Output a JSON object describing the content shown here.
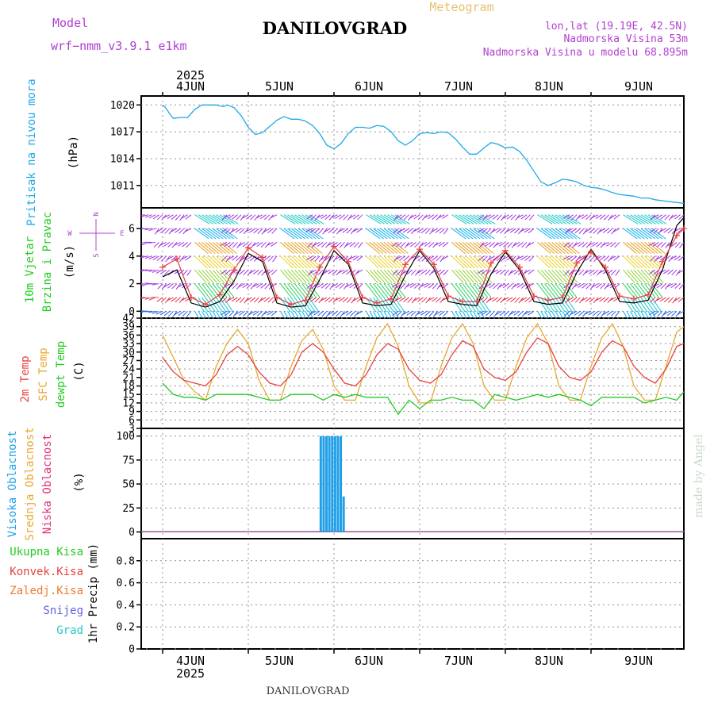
{
  "header": {
    "model_label": "Model",
    "model_name": "wrf−nmm_v3.9.1  e1km",
    "station": "DANILOVGRAD",
    "product": "Meteogram",
    "lonlat": "lon,lat (19.19E, 42.5N)",
    "elevation": "Nadmorska Visina 53m",
    "model_elevation": "Nadmorska Visina u modelu 68.895m",
    "footer_station": "DANILOVGRAD",
    "credit": "made by Angel"
  },
  "colors": {
    "pressure": "#1fa8e8",
    "t2m": "#e84040",
    "sfc": "#e8a830",
    "dewpt": "#22cc22",
    "high_cloud": "#1fa0e8",
    "mid_cloud": "#e8a830",
    "low_cloud": "#e0307a",
    "wind_speed": "#000000",
    "gust": "#e84040",
    "magenta_text": "#b040d0",
    "grid": "#909090"
  },
  "chart_data": [
    {
      "type": "line",
      "panel": "pressure",
      "ylabel_rotated": "Pritisak na nivou mora",
      "ylabel_unit": "(hPa)",
      "ylim": [
        1008.5,
        1021
      ],
      "yticks": [
        1011,
        1014,
        1017,
        1020
      ],
      "x_date_labels": [
        "4JUN",
        "5JUN",
        "6JUN",
        "7JUN",
        "8JUN",
        "9JUN"
      ],
      "x_year": "2025",
      "x": [
        0,
        1,
        2,
        3,
        5,
        7,
        9,
        11,
        13,
        15,
        17,
        18,
        20,
        22,
        24,
        26,
        28,
        30,
        32,
        34,
        36,
        38,
        40,
        42,
        44,
        46,
        48,
        50,
        52,
        54,
        56,
        58,
        60,
        62,
        64,
        66,
        68,
        70,
        72,
        74,
        76,
        78,
        80,
        82,
        84,
        86,
        88,
        90,
        92,
        94,
        96,
        98,
        100,
        102,
        104,
        106,
        108,
        110,
        112,
        114,
        116,
        118,
        120,
        122,
        124,
        126,
        128,
        130,
        132,
        134,
        136,
        138,
        140,
        142,
        144,
        146
      ],
      "series": [
        {
          "values": [
            1020.0,
            1019.6,
            1019.0,
            1018.5,
            1018.6,
            1018.6,
            1019.5,
            1020.0,
            1020.0,
            1020.0,
            1019.8,
            1020.0,
            1019.7,
            1018.8,
            1017.5,
            1016.7,
            1016.9,
            1017.6,
            1018.3,
            1018.7,
            1018.4,
            1018.4,
            1018.2,
            1017.7,
            1016.8,
            1015.5,
            1015.1,
            1015.7,
            1016.8,
            1017.5,
            1017.5,
            1017.4,
            1017.7,
            1017.6,
            1017.0,
            1016.0,
            1015.5,
            1016.0,
            1016.8,
            1016.9,
            1016.8,
            1017.0,
            1016.9,
            1016.2,
            1015.3,
            1014.5,
            1014.5,
            1015.2,
            1015.8,
            1015.6,
            1015.2,
            1015.3,
            1014.8,
            1013.8,
            1012.6,
            1011.4,
            1011.0,
            1011.3,
            1011.7,
            1011.6,
            1011.4,
            1011.0,
            1010.8,
            1010.7,
            1010.5,
            1010.2,
            1010.0,
            1009.9,
            1009.8,
            1009.6,
            1009.6,
            1009.4,
            1009.3,
            1009.2,
            1009.1,
            1009.0
          ]
        }
      ]
    },
    {
      "type": "line",
      "panel": "wind",
      "ylabel_rotated_1": "10m Vjetar",
      "ylabel_rotated_2": "Brzina i Pravac",
      "ylabel_unit": "(m/s)",
      "compass_n": "N",
      "compass_e": "E",
      "compass_w": "W",
      "compass_s": "S",
      "ylim": [
        -0.5,
        7.5
      ],
      "yticks": [
        0,
        2,
        4,
        6
      ],
      "x": [
        0,
        4,
        8,
        12,
        16,
        20,
        24,
        28,
        32,
        36,
        40,
        44,
        48,
        52,
        56,
        60,
        64,
        68,
        72,
        76,
        80,
        84,
        88,
        92,
        96,
        100,
        104,
        108,
        112,
        116,
        120,
        124,
        128,
        132,
        136,
        140,
        144,
        146
      ],
      "series": [
        {
          "name": "speed",
          "values": [
            2.5,
            3.0,
            0.6,
            0.3,
            0.7,
            2.2,
            4.2,
            3.6,
            0.6,
            0.3,
            0.4,
            2.3,
            4.4,
            3.4,
            0.6,
            0.4,
            0.5,
            2.6,
            4.4,
            3.1,
            0.7,
            0.5,
            0.4,
            2.7,
            4.3,
            3.0,
            0.7,
            0.5,
            0.6,
            2.8,
            4.5,
            3.0,
            0.7,
            0.6,
            0.8,
            3.0,
            6.2,
            6.8
          ]
        },
        {
          "name": "gust",
          "values": [
            3.2,
            3.8,
            1.0,
            0.5,
            1.2,
            3.0,
            4.6,
            3.9,
            1.0,
            0.5,
            0.8,
            3.2,
            4.7,
            3.6,
            1.0,
            0.6,
            0.9,
            3.4,
            4.5,
            3.4,
            1.1,
            0.7,
            0.7,
            3.5,
            4.4,
            3.2,
            1.1,
            0.8,
            1.0,
            3.5,
            4.3,
            3.2,
            1.1,
            0.9,
            1.2,
            3.6,
            5.5,
            6.0
          ]
        }
      ]
    },
    {
      "type": "line",
      "panel": "temperature",
      "ylabel_rotated_1": "2m Temp",
      "ylabel_rotated_2": "SFC Temp",
      "ylabel_rotated_3": "dewpt Temp",
      "ylabel_unit": "(C)",
      "ylim": [
        3,
        42
      ],
      "yticks": [
        3,
        6,
        9,
        12,
        15,
        18,
        21,
        24,
        27,
        30,
        33,
        36,
        39,
        42
      ],
      "x": [
        0,
        3,
        6,
        9,
        12,
        15,
        18,
        21,
        24,
        27,
        30,
        33,
        36,
        39,
        42,
        45,
        48,
        51,
        54,
        57,
        60,
        63,
        66,
        69,
        72,
        75,
        78,
        81,
        84,
        87,
        90,
        93,
        96,
        99,
        102,
        105,
        108,
        111,
        114,
        117,
        120,
        123,
        126,
        129,
        132,
        135,
        138,
        141,
        144,
        146
      ],
      "series": [
        {
          "name": "t2m",
          "values": [
            28,
            23,
            20,
            19,
            18,
            22,
            29,
            32,
            29,
            23,
            19,
            18,
            22,
            30,
            33,
            30,
            24,
            19,
            18,
            22,
            29,
            33,
            31,
            24,
            20,
            19,
            22,
            29,
            34,
            32,
            24,
            21,
            20,
            23,
            30,
            35,
            33,
            25,
            21,
            20,
            23,
            30,
            34,
            32,
            25,
            21,
            19,
            24,
            32,
            33
          ]
        },
        {
          "name": "sfc",
          "values": [
            36,
            28,
            20,
            16,
            13,
            25,
            33,
            38,
            33,
            20,
            13,
            13,
            25,
            34,
            38,
            31,
            18,
            13,
            13,
            25,
            35,
            40,
            32,
            18,
            12,
            12,
            25,
            35,
            40,
            33,
            18,
            13,
            13,
            25,
            35,
            40,
            33,
            18,
            13,
            13,
            25,
            35,
            40,
            32,
            18,
            13,
            13,
            25,
            37,
            39
          ]
        },
        {
          "name": "dewpt",
          "values": [
            19,
            15,
            14,
            14,
            13,
            15,
            15,
            15,
            15,
            14,
            13,
            13,
            15,
            15,
            15,
            13,
            15,
            14,
            15,
            14,
            14,
            14,
            8,
            13,
            10,
            13,
            13,
            14,
            13,
            13,
            10,
            15,
            14,
            13,
            14,
            15,
            14,
            15,
            14,
            13,
            11,
            14,
            14,
            14,
            14,
            12,
            13,
            14,
            13,
            16
          ]
        }
      ]
    },
    {
      "type": "bar",
      "panel": "cloud",
      "ylabel_rotated_1": "Visoka Oblacnost",
      "ylabel_rotated_2": "Srednja Oblacnost",
      "ylabel_rotated_3": "Niska Oblacnost",
      "ylabel_unit": "(%)",
      "ylim": [
        -7,
        108
      ],
      "yticks": [
        0,
        25,
        50,
        75,
        100
      ],
      "x": [
        44.3,
        45.1,
        45.9,
        46.7,
        47.5,
        48.3,
        49.1,
        49.9,
        50.7
      ],
      "series": [
        {
          "name": "high",
          "values": [
            100,
            100,
            100,
            100,
            100,
            100,
            100,
            100,
            37
          ]
        }
      ]
    },
    {
      "type": "bar",
      "panel": "precip",
      "legend_total": "Ukupna Kisa",
      "legend_conv": "Konvek.Kisa",
      "legend_frz": "Zaledj.Kisa",
      "legend_snow": "Snijeg",
      "legend_grad": "Grad",
      "ylabel_rotated": "1hr Precip (mm)",
      "ylim": [
        0,
        1.0
      ],
      "yticks": [
        0,
        0.2,
        0.4,
        0.6,
        0.8
      ],
      "x_date_labels": [
        "4JUN",
        "5JUN",
        "6JUN",
        "7JUN",
        "8JUN",
        "9JUN"
      ],
      "x_year": "2025",
      "series": [
        {
          "name": "total",
          "values": [
            0
          ]
        }
      ]
    }
  ]
}
